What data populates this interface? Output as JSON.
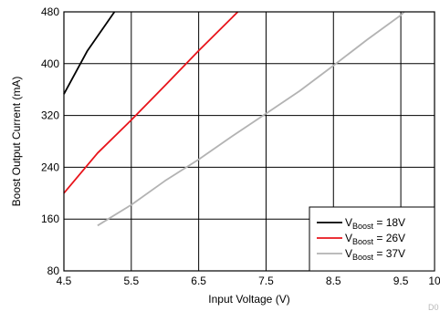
{
  "chart_data": {
    "type": "line",
    "title": "",
    "xlabel": "Input Voltage (V)",
    "ylabel": "Boost Output Current (mA)",
    "xlim": [
      4.5,
      10
    ],
    "ylim": [
      80,
      480
    ],
    "xticks": [
      4.5,
      5.5,
      6.5,
      7.5,
      8.5,
      9.5,
      10
    ],
    "xtick_labels": [
      "4.5",
      "5.5",
      "6.5",
      "7.5",
      "8.5",
      "9.5",
      "10"
    ],
    "yticks": [
      80,
      160,
      240,
      320,
      400,
      480
    ],
    "ytick_labels": [
      "80",
      "160",
      "240",
      "320",
      "400",
      "480"
    ],
    "grid": true,
    "legend_position": "bottom-right",
    "corner_label": "D0",
    "series": [
      {
        "name_main": "V",
        "name_sub": "Boost",
        "name_tail": " = 18V",
        "color": "#000000",
        "x": [
          4.5,
          4.85,
          5.25
        ],
        "y": [
          353,
          420,
          480
        ]
      },
      {
        "name_main": "V",
        "name_sub": "Boost",
        "name_tail": " = 26V",
        "color": "#e8141b",
        "x": [
          4.5,
          5.0,
          5.5,
          6.0,
          6.5,
          7.08
        ],
        "y": [
          200,
          262,
          313,
          366,
          420,
          480
        ]
      },
      {
        "name_main": "V",
        "name_sub": "Boost",
        "name_tail": " = 37V",
        "color": "#b3b3b3",
        "x": [
          5.0,
          5.5,
          6.0,
          6.5,
          7.0,
          7.5,
          8.0,
          8.5,
          9.0,
          9.5,
          9.55
        ],
        "y": [
          150,
          182,
          219,
          252,
          288,
          323,
          358,
          397,
          437,
          475,
          480
        ]
      }
    ]
  }
}
